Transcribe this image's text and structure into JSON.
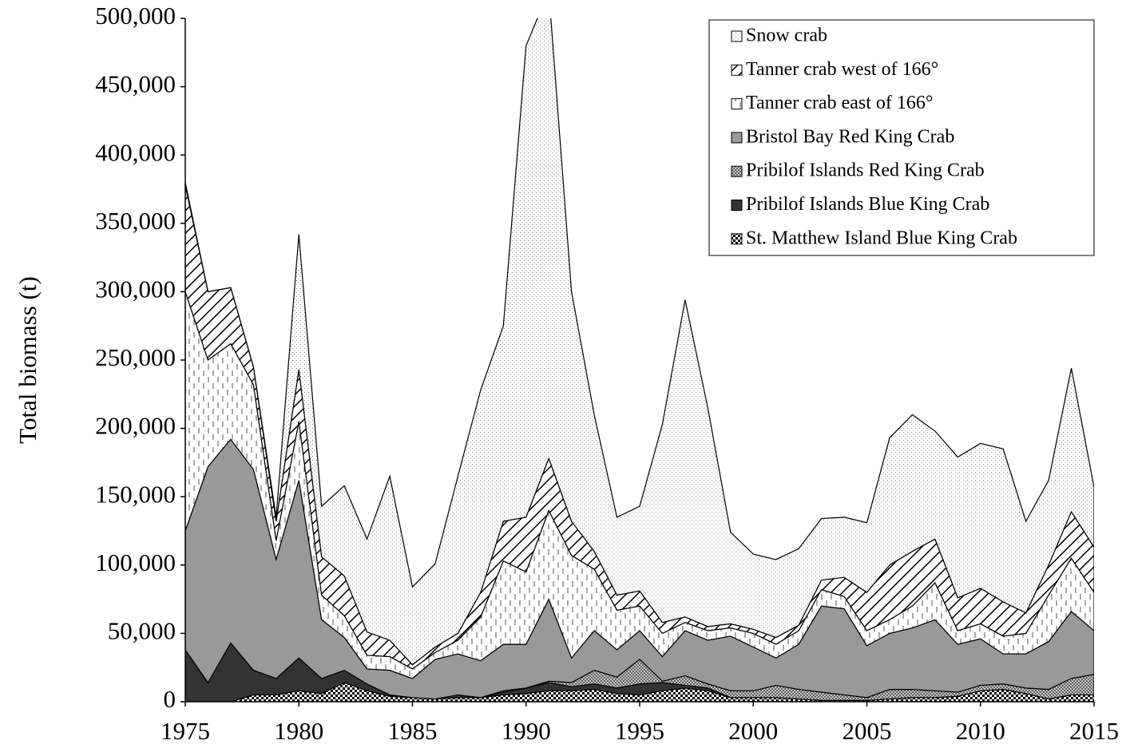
{
  "chart_data": {
    "type": "stacked_area",
    "y_label": "Total biomass (t)",
    "x": [
      1975,
      1976,
      1977,
      1978,
      1979,
      1980,
      1981,
      1982,
      1983,
      1984,
      1985,
      1986,
      1987,
      1988,
      1989,
      1990,
      1991,
      1992,
      1993,
      1994,
      1995,
      1996,
      1997,
      1998,
      1999,
      2000,
      2001,
      2002,
      2003,
      2004,
      2005,
      2006,
      2007,
      2008,
      2009,
      2010,
      2011,
      2012,
      2013,
      2014,
      2015
    ],
    "xlim": [
      1975,
      2015
    ],
    "xticks": [
      1975,
      1980,
      1985,
      1990,
      1995,
      2000,
      2005,
      2010,
      2015
    ],
    "ylim": [
      0,
      500000
    ],
    "yticks": [
      0,
      {
        "value": 50000,
        "label": "50,000"
      },
      {
        "value": 100000,
        "label": "100,000"
      },
      {
        "value": 150000,
        "label": "150,000"
      },
      {
        "value": 200000,
        "label": "200,000"
      },
      {
        "value": 250000,
        "label": "250,000"
      },
      {
        "value": 300000,
        "label": "300,000"
      },
      {
        "value": 350000,
        "label": "350,000"
      },
      {
        "value": 400000,
        "label": "400,000"
      },
      {
        "value": 450000,
        "label": "450,000"
      },
      {
        "value": 500000,
        "label": "500,000"
      }
    ],
    "legend": "upper right",
    "series": [
      {
        "name": "Snow crab",
        "color": "#ffffff",
        "values": [
          2000,
          0,
          0,
          0,
          3000,
          99000,
          37000,
          66000,
          68000,
          120000,
          57000,
          61000,
          115000,
          148000,
          143000,
          345000,
          342000,
          168000,
          100000,
          57000,
          62000,
          145000,
          232000,
          160000,
          67000,
          55000,
          57000,
          56000,
          45000,
          44000,
          51000,
          93000,
          100000,
          79000,
          103000,
          106000,
          112000,
          67000,
          62000,
          105000,
          44000
        ]
      },
      {
        "name": "Tanner crab west of 166°",
        "color": "#ffffff",
        "values": [
          78000,
          50000,
          41000,
          13000,
          14000,
          38000,
          28000,
          29000,
          17000,
          12000,
          3000,
          4000,
          5000,
          18000,
          29000,
          40000,
          38000,
          25000,
          13000,
          11000,
          11000,
          8000,
          4000,
          3000,
          3000,
          3000,
          5000,
          4000,
          7000,
          14000,
          28000,
          40000,
          40000,
          32000,
          24000,
          26000,
          25000,
          15000,
          22000,
          34000,
          33000
        ]
      },
      {
        "name": "Tanner crab east of 166°",
        "color": "#ffffff",
        "values": [
          175000,
          78000,
          70000,
          62000,
          14000,
          43000,
          18000,
          16000,
          10000,
          10000,
          7000,
          5000,
          10000,
          32000,
          61000,
          53000,
          65000,
          75000,
          45000,
          29000,
          18000,
          17000,
          6000,
          7000,
          6000,
          10000,
          10000,
          10000,
          12000,
          9000,
          11000,
          10000,
          16000,
          27000,
          10000,
          11000,
          13000,
          15000,
          34000,
          39000,
          28000
        ]
      },
      {
        "name": "Bristol Bay Red King Crab",
        "color": "#999999",
        "values": [
          87000,
          158000,
          149000,
          147000,
          87000,
          130000,
          43000,
          24000,
          11000,
          18000,
          14000,
          29000,
          30000,
          27000,
          34000,
          32000,
          60000,
          18000,
          29000,
          20000,
          21000,
          18000,
          33000,
          32000,
          40000,
          32000,
          20000,
          33000,
          63000,
          63000,
          38000,
          41000,
          45000,
          52000,
          35000,
          34000,
          22000,
          25000,
          35000,
          49000,
          32000
        ]
      },
      {
        "name": "Pribilof Islands Red King Crab",
        "color": "#c0c0c0",
        "values": [
          0,
          0,
          0,
          0,
          0,
          0,
          0,
          0,
          0,
          0,
          0,
          0,
          0,
          0,
          1000,
          0,
          1000,
          3000,
          10000,
          8000,
          18000,
          1000,
          7000,
          3000,
          5000,
          5000,
          9000,
          7000,
          6000,
          4000,
          2000,
          7000,
          6000,
          5000,
          3000,
          4000,
          4000,
          4000,
          7000,
          12000,
          15000
        ]
      },
      {
        "name": "Pribilof Islands Blue King Crab",
        "color": "#333333",
        "values": [
          38000,
          14000,
          43000,
          18000,
          12000,
          24000,
          11000,
          9000,
          5000,
          1000,
          0,
          0,
          2000,
          0,
          2000,
          4000,
          6000,
          3000,
          4000,
          4000,
          8000,
          6000,
          2000,
          2000,
          0,
          0,
          0,
          0,
          0,
          0,
          0,
          0,
          0,
          0,
          0,
          0,
          0,
          0,
          0,
          0,
          0
        ]
      },
      {
        "name": "St. Matthew Island Blue King Crab",
        "color": "#ffffff",
        "values": [
          0,
          0,
          0,
          5000,
          5000,
          8000,
          6000,
          14000,
          8000,
          4000,
          3000,
          2000,
          3000,
          3000,
          5000,
          6000,
          8000,
          8000,
          9000,
          6000,
          5000,
          8000,
          10000,
          8000,
          3000,
          3000,
          3000,
          2000,
          1000,
          1000,
          1000,
          2000,
          3000,
          3000,
          4000,
          8000,
          9000,
          6000,
          2000,
          5000,
          5000
        ]
      }
    ]
  }
}
